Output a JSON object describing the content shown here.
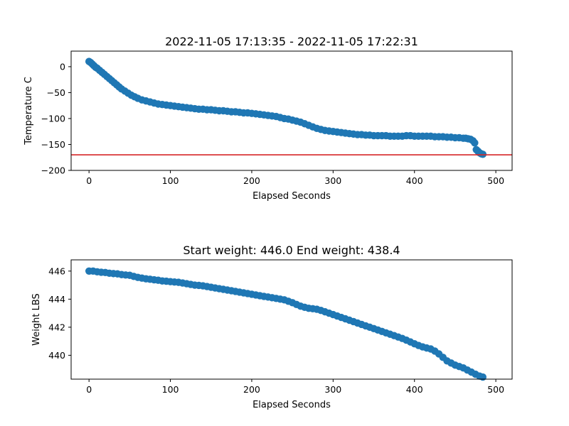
{
  "chart_data": [
    {
      "type": "scatter",
      "title": "2022-11-05 17:13:35 - 2022-11-05 17:22:31",
      "xlabel": "Elapsed Seconds",
      "ylabel": "Temperature C",
      "xlim": [
        -22,
        520
      ],
      "ylim": [
        -200,
        30
      ],
      "xticks": [
        0,
        100,
        200,
        300,
        400,
        500
      ],
      "yticks": [
        0,
        -50,
        -100,
        -150,
        -200
      ],
      "grid": false,
      "marker_color": "#1f77b4",
      "reference_line": {
        "y": -170,
        "color": "#d62728"
      },
      "series": [
        {
          "x": [
            0,
            2,
            4,
            6,
            8,
            10,
            13,
            16,
            19,
            22,
            25,
            28,
            31,
            34,
            37,
            40,
            44,
            48,
            52,
            56,
            60,
            65,
            70,
            75,
            80,
            85,
            90,
            95,
            100,
            105,
            110,
            115,
            120,
            125,
            130,
            135,
            140,
            145,
            150,
            155,
            160,
            165,
            170,
            175,
            180,
            185,
            190,
            195,
            200,
            205,
            210,
            215,
            220,
            225,
            230,
            235,
            240,
            245,
            250,
            255,
            260,
            265,
            270,
            275,
            280,
            285,
            290,
            295,
            300,
            305,
            310,
            315,
            320,
            325,
            330,
            335,
            340,
            345,
            350,
            355,
            360,
            365,
            370,
            375,
            380,
            385,
            390,
            395,
            400,
            405,
            410,
            415,
            420,
            425,
            430,
            435,
            440,
            445,
            450,
            455,
            460,
            463,
            466,
            469,
            472,
            474,
            476,
            478,
            480,
            482,
            484
          ],
          "y": [
            10,
            8,
            5,
            2,
            -1,
            -3,
            -7,
            -11,
            -15,
            -19,
            -23,
            -27,
            -31,
            -35,
            -39,
            -43,
            -47,
            -51,
            -55,
            -58,
            -61,
            -64,
            -66,
            -68,
            -70,
            -72,
            -73,
            -74,
            -75,
            -76,
            -77,
            -78,
            -79,
            -80,
            -81,
            -82,
            -82,
            -83,
            -83,
            -84,
            -85,
            -85,
            -86,
            -87,
            -87,
            -88,
            -89,
            -89,
            -90,
            -91,
            -92,
            -93,
            -94,
            -95,
            -96,
            -98,
            -100,
            -101,
            -103,
            -105,
            -107,
            -110,
            -113,
            -116,
            -119,
            -121,
            -123,
            -124,
            -125,
            -126,
            -127,
            -128,
            -129,
            -130,
            -131,
            -131,
            -132,
            -132,
            -133,
            -133,
            -133,
            -133,
            -134,
            -134,
            -134,
            -134,
            -133,
            -133,
            -134,
            -134,
            -134,
            -134,
            -134,
            -135,
            -135,
            -135,
            -136,
            -136,
            -137,
            -137,
            -138,
            -138,
            -139,
            -140,
            -143,
            -147,
            -160,
            -163,
            -166,
            -168,
            -169
          ]
        }
      ]
    },
    {
      "type": "scatter",
      "title": "Start weight: 446.0 End weight: 438.4",
      "xlabel": "Elapsed Seconds",
      "ylabel": "Weight LBS",
      "xlim": [
        -22,
        520
      ],
      "ylim": [
        438.3,
        446.8
      ],
      "xticks": [
        0,
        100,
        200,
        300,
        400,
        500
      ],
      "yticks": [
        440,
        442,
        444,
        446
      ],
      "grid": false,
      "marker_color": "#1f77b4",
      "series": [
        {
          "x": [
            0,
            5,
            10,
            15,
            20,
            25,
            30,
            35,
            40,
            45,
            50,
            55,
            60,
            65,
            70,
            75,
            80,
            85,
            90,
            95,
            100,
            105,
            110,
            115,
            120,
            125,
            130,
            135,
            140,
            145,
            150,
            155,
            160,
            165,
            170,
            175,
            180,
            185,
            190,
            195,
            200,
            205,
            210,
            215,
            220,
            225,
            230,
            235,
            240,
            245,
            250,
            255,
            260,
            265,
            270,
            275,
            280,
            285,
            290,
            295,
            300,
            305,
            310,
            315,
            320,
            325,
            330,
            335,
            340,
            345,
            350,
            355,
            360,
            365,
            370,
            375,
            380,
            385,
            390,
            395,
            400,
            405,
            410,
            415,
            420,
            425,
            430,
            435,
            440,
            445,
            450,
            455,
            460,
            465,
            470,
            475,
            480,
            484
          ],
          "y": [
            446.0,
            446.0,
            445.95,
            445.92,
            445.9,
            445.85,
            445.82,
            445.8,
            445.75,
            445.72,
            445.7,
            445.62,
            445.55,
            445.5,
            445.45,
            445.42,
            445.38,
            445.35,
            445.3,
            445.28,
            445.25,
            445.22,
            445.2,
            445.15,
            445.1,
            445.05,
            445.0,
            444.98,
            444.95,
            444.9,
            444.85,
            444.8,
            444.75,
            444.7,
            444.65,
            444.6,
            444.55,
            444.5,
            444.45,
            444.4,
            444.35,
            444.3,
            444.25,
            444.2,
            444.15,
            444.1,
            444.05,
            444.0,
            443.95,
            443.85,
            443.75,
            443.62,
            443.5,
            443.42,
            443.35,
            443.32,
            443.28,
            443.2,
            443.1,
            443.0,
            442.9,
            442.8,
            442.7,
            442.6,
            442.5,
            442.4,
            442.3,
            442.2,
            442.1,
            442.0,
            441.9,
            441.8,
            441.7,
            441.6,
            441.5,
            441.4,
            441.3,
            441.2,
            441.08,
            440.95,
            440.82,
            440.7,
            440.6,
            440.52,
            440.45,
            440.3,
            440.1,
            439.85,
            439.6,
            439.45,
            439.3,
            439.2,
            439.1,
            438.95,
            438.8,
            438.65,
            438.52,
            438.45
          ]
        }
      ]
    }
  ]
}
